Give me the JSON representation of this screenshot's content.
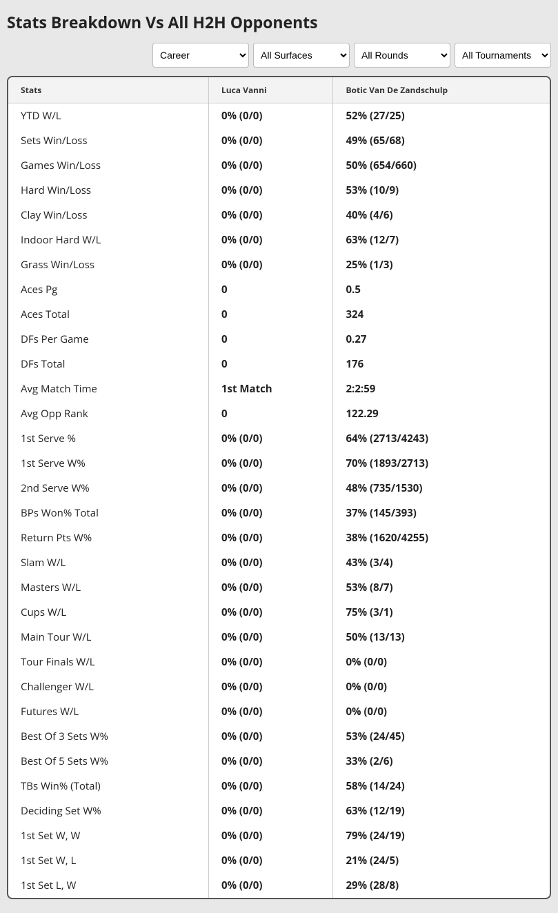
{
  "title": "Stats Breakdown Vs All H2H Opponents",
  "filters": {
    "career": "Career",
    "surfaces": "All Surfaces",
    "rounds": "All Rounds",
    "tournaments": "All Tournaments"
  },
  "columns": {
    "stats": "Stats",
    "player1": "Luca Vanni",
    "player2": "Botic Van De Zandschulp"
  },
  "rows": [
    {
      "stat": "YTD W/L",
      "p1": "0% (0/0)",
      "p2": "52% (27/25)"
    },
    {
      "stat": "Sets Win/Loss",
      "p1": "0% (0/0)",
      "p2": "49% (65/68)"
    },
    {
      "stat": "Games Win/Loss",
      "p1": "0% (0/0)",
      "p2": "50% (654/660)"
    },
    {
      "stat": "Hard Win/Loss",
      "p1": "0% (0/0)",
      "p2": "53% (10/9)"
    },
    {
      "stat": "Clay Win/Loss",
      "p1": "0% (0/0)",
      "p2": "40% (4/6)"
    },
    {
      "stat": "Indoor Hard W/L",
      "p1": "0% (0/0)",
      "p2": "63% (12/7)"
    },
    {
      "stat": "Grass Win/Loss",
      "p1": "0% (0/0)",
      "p2": "25% (1/3)"
    },
    {
      "stat": "Aces Pg",
      "p1": "0",
      "p2": "0.5"
    },
    {
      "stat": "Aces Total",
      "p1": "0",
      "p2": "324"
    },
    {
      "stat": "DFs Per Game",
      "p1": "0",
      "p2": "0.27"
    },
    {
      "stat": "DFs Total",
      "p1": "0",
      "p2": "176"
    },
    {
      "stat": "Avg Match Time",
      "p1": "1st Match",
      "p2": "2:2:59"
    },
    {
      "stat": "Avg Opp Rank",
      "p1": "0",
      "p2": "122.29"
    },
    {
      "stat": "1st Serve %",
      "p1": "0% (0/0)",
      "p2": "64% (2713/4243)"
    },
    {
      "stat": "1st Serve W%",
      "p1": "0% (0/0)",
      "p2": "70% (1893/2713)"
    },
    {
      "stat": "2nd Serve W%",
      "p1": "0% (0/0)",
      "p2": "48% (735/1530)"
    },
    {
      "stat": "BPs Won% Total",
      "p1": "0% (0/0)",
      "p2": "37% (145/393)"
    },
    {
      "stat": "Return Pts W%",
      "p1": "0% (0/0)",
      "p2": "38% (1620/4255)"
    },
    {
      "stat": "Slam W/L",
      "p1": "0% (0/0)",
      "p2": "43% (3/4)"
    },
    {
      "stat": "Masters W/L",
      "p1": "0% (0/0)",
      "p2": "53% (8/7)"
    },
    {
      "stat": "Cups W/L",
      "p1": "0% (0/0)",
      "p2": "75% (3/1)"
    },
    {
      "stat": "Main Tour W/L",
      "p1": "0% (0/0)",
      "p2": "50% (13/13)"
    },
    {
      "stat": "Tour Finals W/L",
      "p1": "0% (0/0)",
      "p2": "0% (0/0)"
    },
    {
      "stat": "Challenger W/L",
      "p1": "0% (0/0)",
      "p2": "0% (0/0)"
    },
    {
      "stat": "Futures W/L",
      "p1": "0% (0/0)",
      "p2": "0% (0/0)"
    },
    {
      "stat": "Best Of 3 Sets W%",
      "p1": "0% (0/0)",
      "p2": "53% (24/45)"
    },
    {
      "stat": "Best Of 5 Sets W%",
      "p1": "0% (0/0)",
      "p2": "33% (2/6)"
    },
    {
      "stat": "TBs Win% (Total)",
      "p1": "0% (0/0)",
      "p2": "58% (14/24)"
    },
    {
      "stat": "Deciding Set W%",
      "p1": "0% (0/0)",
      "p2": "63% (12/19)"
    },
    {
      "stat": "1st Set W, W",
      "p1": "0% (0/0)",
      "p2": "79% (24/19)"
    },
    {
      "stat": "1st Set W, L",
      "p1": "0% (0/0)",
      "p2": "21% (24/5)"
    },
    {
      "stat": "1st Set L, W",
      "p1": "0% (0/0)",
      "p2": "29% (28/8)"
    }
  ]
}
